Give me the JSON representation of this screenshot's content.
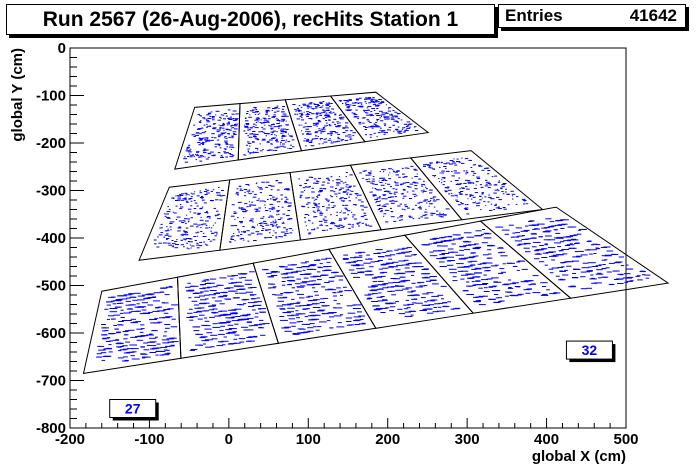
{
  "title": "Run 2567 (26-Aug-2006), recHits Station 1",
  "stats": {
    "label": "Entries",
    "value": "41642"
  },
  "colors": {
    "points": "#0000ff",
    "label_text": "#0000ff",
    "background": "#ffffff"
  },
  "chart_data": {
    "type": "scatter",
    "xlabel": "global X (cm)",
    "ylabel": "global Y (cm)",
    "xlim": [
      -200,
      500
    ],
    "ylim": [
      -800,
      0
    ],
    "x_ticks": [
      "-200",
      "-100",
      "0",
      "100",
      "200",
      "300",
      "400",
      "500"
    ],
    "y_ticks": [
      "0",
      "-100",
      "-200",
      "-300",
      "-400",
      "-500",
      "-600",
      "-700",
      "-800"
    ],
    "grid": false,
    "entries": 41642,
    "chamber_labels": [
      "27",
      "32"
    ],
    "rings": [
      {
        "name": "inner",
        "chambers": 4
      },
      {
        "name": "middle",
        "chambers": 5
      },
      {
        "name": "outer",
        "chambers": 6
      }
    ]
  }
}
